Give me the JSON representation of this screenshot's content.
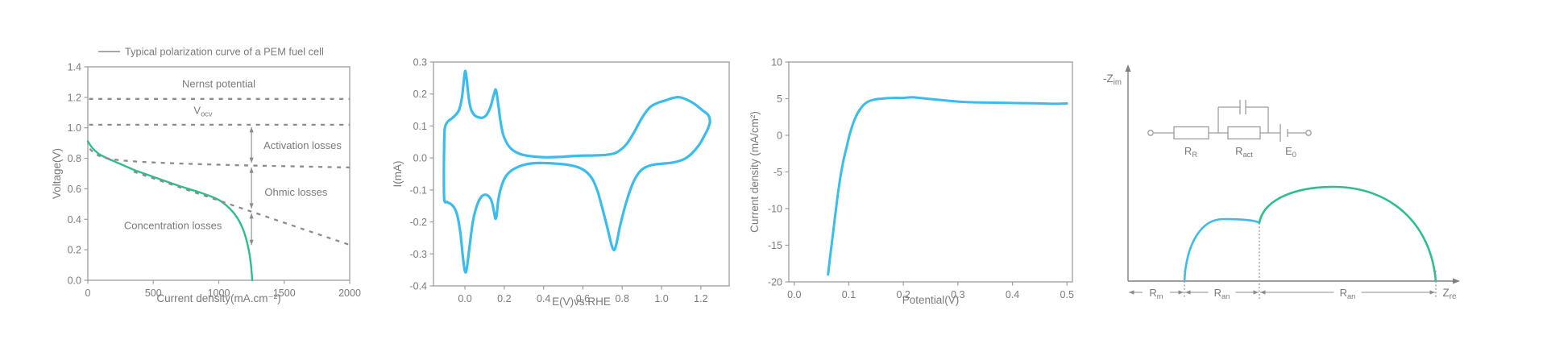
{
  "colors": {
    "blue": "#3bbcec",
    "green": "#2ebe8d",
    "axis": "#9d9d9d",
    "dash": "#8c8c8c",
    "text": "#7a7a7a",
    "arrow": "#7f7f7f"
  },
  "chart_data": [
    {
      "id": "pem-polarization",
      "type": "line",
      "legend": "Typical polarization curve of a PEM fuel cell",
      "xlabel": "Current density(mA.cm⁻²)",
      "ylabel": "Voltage(V)",
      "xlim": [
        0,
        2000
      ],
      "ylim": [
        0,
        1.4
      ],
      "x_ticks": [
        "0",
        "500",
        "1000",
        "1500",
        "2000"
      ],
      "y_ticks": [
        "0.0",
        "0.2",
        "0.4",
        "0.6",
        "0.8",
        "1.0",
        "1.2",
        "1.4"
      ],
      "series": [
        {
          "name": "polarization-curve",
          "color_key": "green",
          "width": 2.4,
          "style": "solid",
          "points": [
            [
              0,
              0.912
            ],
            [
              25,
              0.878
            ],
            [
              55,
              0.85
            ],
            [
              90,
              0.826
            ],
            [
              140,
              0.803
            ],
            [
              200,
              0.781
            ],
            [
              270,
              0.755
            ],
            [
              350,
              0.725
            ],
            [
              430,
              0.7
            ],
            [
              520,
              0.672
            ],
            [
              610,
              0.645
            ],
            [
              700,
              0.618
            ],
            [
              790,
              0.594
            ],
            [
              870,
              0.572
            ],
            [
              940,
              0.55
            ],
            [
              1000,
              0.527
            ],
            [
              1050,
              0.497
            ],
            [
              1090,
              0.465
            ],
            [
              1125,
              0.43
            ],
            [
              1155,
              0.39
            ],
            [
              1185,
              0.335
            ],
            [
              1210,
              0.27
            ],
            [
              1230,
              0.195
            ],
            [
              1245,
              0.11
            ],
            [
              1256,
              0.0
            ]
          ]
        },
        {
          "name": "nernst-potential-line",
          "style": "dashed",
          "points": [
            [
              10,
              1.19
            ],
            [
              2000,
              1.19
            ]
          ]
        },
        {
          "name": "ocv-line",
          "style": "dashed",
          "points": [
            [
              10,
              1.02
            ],
            [
              2000,
              1.02
            ]
          ]
        },
        {
          "name": "activation-loss-boundary",
          "style": "dashed",
          "points": [
            [
              15,
              0.862
            ],
            [
              60,
              0.828
            ],
            [
              120,
              0.806
            ],
            [
              200,
              0.792
            ],
            [
              320,
              0.782
            ],
            [
              500,
              0.773
            ],
            [
              700,
              0.766
            ],
            [
              1000,
              0.758
            ],
            [
              1300,
              0.752
            ],
            [
              1650,
              0.746
            ],
            [
              2000,
              0.74
            ]
          ]
        },
        {
          "name": "ohmic-loss-boundary",
          "style": "dashed",
          "points": [
            [
              350,
              0.712
            ],
            [
              2000,
              0.232
            ]
          ]
        }
      ],
      "annotations": [
        {
          "name": "nernst-potential-label",
          "text": "Nernst potential",
          "x": 1000,
          "y": 1.265
        },
        {
          "name": "vocv-label",
          "text": {
            "main": "V",
            "sub": "ocv"
          },
          "x": 880,
          "y": 1.09
        },
        {
          "name": "activation-losses-label",
          "text": "Activation losses",
          "x": 1640,
          "y": 0.86
        },
        {
          "name": "ohmic-losses-label",
          "text": "Ohmic losses",
          "x": 1590,
          "y": 0.555
        },
        {
          "name": "concentration-losses-label",
          "text": "Concentration losses",
          "x": 650,
          "y": 0.335
        }
      ],
      "arrows": [
        {
          "x": 1250,
          "y1": 1.02,
          "y2": 0.755
        },
        {
          "x": 1250,
          "y1": 0.755,
          "y2": 0.455
        },
        {
          "x": 1250,
          "y1": 0.455,
          "y2": 0.215
        }
      ]
    },
    {
      "id": "cyclic-voltammogram",
      "type": "line",
      "xlabel": "E(V)vs.RHE",
      "ylabel": "I(mA)",
      "xlim": [
        -0.16,
        1.344
      ],
      "ylim": [
        -0.4,
        0.3
      ],
      "x_ticks": [
        "0.0",
        "0.2",
        "0.4",
        "0.6",
        "0.8",
        "1.0",
        "1.2"
      ],
      "y_ticks": [
        "-0.4",
        "-0.3",
        "-0.2",
        "-0.1",
        "0.0",
        "0.1",
        "0.2",
        "0.3"
      ],
      "series": [
        {
          "name": "cv-loop",
          "color_key": "blue",
          "width": 3.2,
          "closed": true,
          "style": "solid",
          "points": [
            [
              -0.105,
              -0.13
            ],
            [
              -0.107,
              -0.05
            ],
            [
              -0.106,
              0.03
            ],
            [
              -0.103,
              0.09
            ],
            [
              -0.09,
              0.112
            ],
            [
              -0.07,
              0.122
            ],
            [
              -0.05,
              0.133
            ],
            [
              -0.03,
              0.15
            ],
            [
              -0.015,
              0.19
            ],
            [
              -0.005,
              0.245
            ],
            [
              0.002,
              0.272
            ],
            [
              0.01,
              0.24
            ],
            [
              0.02,
              0.185
            ],
            [
              0.032,
              0.15
            ],
            [
              0.05,
              0.133
            ],
            [
              0.07,
              0.127
            ],
            [
              0.09,
              0.126
            ],
            [
              0.11,
              0.135
            ],
            [
              0.13,
              0.16
            ],
            [
              0.148,
              0.2
            ],
            [
              0.158,
              0.212
            ],
            [
              0.17,
              0.165
            ],
            [
              0.182,
              0.11
            ],
            [
              0.195,
              0.072
            ],
            [
              0.21,
              0.05
            ],
            [
              0.23,
              0.032
            ],
            [
              0.26,
              0.018
            ],
            [
              0.3,
              0.009
            ],
            [
              0.36,
              0.004
            ],
            [
              0.42,
              0.002
            ],
            [
              0.5,
              0.004
            ],
            [
              0.58,
              0.007
            ],
            [
              0.66,
              0.008
            ],
            [
              0.72,
              0.01
            ],
            [
              0.77,
              0.017
            ],
            [
              0.82,
              0.042
            ],
            [
              0.86,
              0.08
            ],
            [
              0.9,
              0.125
            ],
            [
              0.94,
              0.158
            ],
            [
              0.98,
              0.172
            ],
            [
              1.02,
              0.18
            ],
            [
              1.06,
              0.188
            ],
            [
              1.09,
              0.19
            ],
            [
              1.13,
              0.182
            ],
            [
              1.17,
              0.168
            ],
            [
              1.21,
              0.148
            ],
            [
              1.235,
              0.136
            ],
            [
              1.246,
              0.118
            ],
            [
              1.24,
              0.098
            ],
            [
              1.22,
              0.072
            ],
            [
              1.19,
              0.04
            ],
            [
              1.15,
              0.012
            ],
            [
              1.11,
              -0.005
            ],
            [
              1.06,
              -0.014
            ],
            [
              1.0,
              -0.018
            ],
            [
              0.95,
              -0.022
            ],
            [
              0.91,
              -0.032
            ],
            [
              0.88,
              -0.05
            ],
            [
              0.85,
              -0.085
            ],
            [
              0.82,
              -0.14
            ],
            [
              0.79,
              -0.21
            ],
            [
              0.77,
              -0.27
            ],
            [
              0.758,
              -0.288
            ],
            [
              0.745,
              -0.27
            ],
            [
              0.725,
              -0.22
            ],
            [
              0.7,
              -0.16
            ],
            [
              0.675,
              -0.105
            ],
            [
              0.65,
              -0.068
            ],
            [
              0.62,
              -0.045
            ],
            [
              0.58,
              -0.03
            ],
            [
              0.53,
              -0.022
            ],
            [
              0.47,
              -0.018
            ],
            [
              0.41,
              -0.016
            ],
            [
              0.36,
              -0.016
            ],
            [
              0.31,
              -0.02
            ],
            [
              0.27,
              -0.028
            ],
            [
              0.235,
              -0.04
            ],
            [
              0.205,
              -0.06
            ],
            [
              0.185,
              -0.09
            ],
            [
              0.17,
              -0.13
            ],
            [
              0.162,
              -0.175
            ],
            [
              0.155,
              -0.19
            ],
            [
              0.147,
              -0.165
            ],
            [
              0.138,
              -0.14
            ],
            [
              0.127,
              -0.124
            ],
            [
              0.115,
              -0.117
            ],
            [
              0.1,
              -0.115
            ],
            [
              0.085,
              -0.12
            ],
            [
              0.07,
              -0.135
            ],
            [
              0.055,
              -0.16
            ],
            [
              0.04,
              -0.2
            ],
            [
              0.025,
              -0.27
            ],
            [
              0.013,
              -0.33
            ],
            [
              0.005,
              -0.357
            ],
            [
              -0.003,
              -0.345
            ],
            [
              -0.012,
              -0.3
            ],
            [
              -0.022,
              -0.24
            ],
            [
              -0.035,
              -0.19
            ],
            [
              -0.05,
              -0.16
            ],
            [
              -0.07,
              -0.145
            ],
            [
              -0.09,
              -0.138
            ]
          ]
        }
      ]
    },
    {
      "id": "lsv-polarization",
      "type": "line",
      "xlabel": "Potential(V)",
      "ylabel": "Current density (mA/cm²)",
      "xlim": [
        -0.01,
        0.51
      ],
      "ylim": [
        -20,
        10
      ],
      "x_ticks": [
        "0.0",
        "0.1",
        "0.2",
        "0.3",
        "0.4",
        "0.5"
      ],
      "y_ticks": [
        "-20",
        "-15",
        "-10",
        "-5",
        "0",
        "5",
        "10"
      ],
      "series": [
        {
          "name": "lsv-curve",
          "color_key": "blue",
          "width": 3,
          "style": "solid",
          "points": [
            [
              0.062,
              -19
            ],
            [
              0.065,
              -17
            ],
            [
              0.07,
              -14
            ],
            [
              0.075,
              -11
            ],
            [
              0.08,
              -8
            ],
            [
              0.085,
              -5.5
            ],
            [
              0.09,
              -3.5
            ],
            [
              0.096,
              -1.6
            ],
            [
              0.103,
              0.5
            ],
            [
              0.112,
              2.4
            ],
            [
              0.122,
              3.7
            ],
            [
              0.133,
              4.5
            ],
            [
              0.145,
              4.85
            ],
            [
              0.16,
              5.0
            ],
            [
              0.18,
              5.1
            ],
            [
              0.2,
              5.1
            ],
            [
              0.215,
              5.2
            ],
            [
              0.23,
              5.1
            ],
            [
              0.25,
              4.95
            ],
            [
              0.27,
              4.8
            ],
            [
              0.3,
              4.6
            ],
            [
              0.33,
              4.5
            ],
            [
              0.37,
              4.45
            ],
            [
              0.41,
              4.4
            ],
            [
              0.45,
              4.35
            ],
            [
              0.48,
              4.3
            ],
            [
              0.5,
              4.35
            ]
          ]
        }
      ]
    },
    {
      "id": "nyquist-plot",
      "type": "nyquist",
      "xlabel": {
        "main": "Z",
        "sub": "re"
      },
      "ylabel": {
        "main": "-Z",
        "sub": "im"
      },
      "arcs": [
        {
          "name": "first-semicircle",
          "color_key": "blue",
          "start": 70,
          "start_h": 0,
          "peak_x": 118,
          "peak_h": 77,
          "end": 163,
          "end_h": 72
        },
        {
          "name": "second-semicircle",
          "color_key": "green",
          "start": 163,
          "start_h": 72,
          "peak_x": 255,
          "peak_h": 117,
          "end": 382,
          "end_h": 0
        }
      ],
      "segments": [
        {
          "name": "rm-span",
          "label": {
            "main": "R",
            "sub": "m"
          },
          "from": 0,
          "to": 70
        },
        {
          "name": "ran1-span",
          "label": {
            "main": "R",
            "sub": "an"
          },
          "from": 70,
          "to": 163
        },
        {
          "name": "ran2-span",
          "label": {
            "main": "R",
            "sub": "an"
          },
          "from": 163,
          "to": 382
        }
      ],
      "circuit": {
        "labels": [
          {
            "main": "R",
            "sub": "R"
          },
          {
            "main": "R",
            "sub": "act"
          },
          {
            "main": "E",
            "sub": "0"
          }
        ]
      }
    }
  ]
}
